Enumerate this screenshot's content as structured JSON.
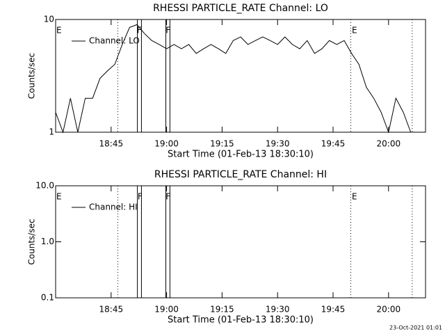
{
  "chart_data": [
    {
      "type": "line",
      "title": "RHESSI PARTICLE_RATE Channel: LO",
      "xlabel": "Start Time (01-Feb-13 18:30:10)",
      "ylabel": "Counts/sec",
      "xlim": [
        30,
        130
      ],
      "xticks": [
        {
          "value": 45,
          "label": "18:45"
        },
        {
          "value": 60,
          "label": "19:00"
        },
        {
          "value": 75,
          "label": "19:15"
        },
        {
          "value": 90,
          "label": "19:30"
        },
        {
          "value": 105,
          "label": "19:45"
        },
        {
          "value": 120,
          "label": "20:00"
        }
      ],
      "ylim": [
        1,
        10
      ],
      "yticks": [
        1,
        10
      ],
      "ylog": true,
      "legend": "upper left",
      "x": [
        30,
        32,
        34,
        36,
        38,
        40,
        42,
        44,
        46,
        48,
        50,
        52,
        54,
        56,
        58,
        60,
        62,
        64,
        66,
        68,
        70,
        72,
        74,
        76,
        78,
        80,
        82,
        84,
        86,
        88,
        90,
        92,
        94,
        96,
        98,
        100,
        102,
        104,
        106,
        108,
        110,
        112,
        114,
        116,
        118,
        120,
        122,
        124,
        126
      ],
      "series": [
        {
          "name": "Channel: LO",
          "color": "#000000",
          "values": [
            1.5,
            1,
            2,
            1,
            2,
            2,
            3,
            3.5,
            4,
            6,
            8.5,
            9,
            7.5,
            6.5,
            6,
            5.5,
            6,
            5.5,
            6,
            5,
            5.5,
            6,
            5.5,
            5,
            6.5,
            7,
            6,
            6.5,
            7,
            6.5,
            6,
            7,
            6,
            5.5,
            6.5,
            5,
            5.5,
            6.5,
            6,
            6.5,
            5,
            4,
            2.5,
            2,
            1.5,
            1,
            2,
            1.5,
            1
          ]
        }
      ],
      "markers": [
        {
          "x": 46.8,
          "style": "dotted"
        },
        {
          "x": 52.1,
          "style": "solid"
        },
        {
          "x": 53.2,
          "style": "solid"
        },
        {
          "x": 59.8,
          "style": "solid"
        },
        {
          "x": 60.9,
          "style": "solid"
        },
        {
          "x": 109.8,
          "style": "dotted"
        },
        {
          "x": 126.4,
          "style": "dotted"
        }
      ],
      "flags": [
        {
          "x": 30.9,
          "label": "E"
        },
        {
          "x": 52.6,
          "label": "F"
        },
        {
          "x": 60.4,
          "label": "F"
        },
        {
          "x": 110.8,
          "label": "E"
        }
      ]
    },
    {
      "type": "line",
      "title": "RHESSI PARTICLE_RATE Channel: HI",
      "xlabel": "Start Time (01-Feb-13 18:30:10)",
      "ylabel": "Counts/sec",
      "xlim": [
        30,
        130
      ],
      "xticks": [
        {
          "value": 45,
          "label": "18:45"
        },
        {
          "value": 60,
          "label": "19:00"
        },
        {
          "value": 75,
          "label": "19:15"
        },
        {
          "value": 90,
          "label": "19:30"
        },
        {
          "value": 105,
          "label": "19:45"
        },
        {
          "value": 120,
          "label": "20:00"
        }
      ],
      "ylim": [
        0.1,
        10
      ],
      "yticks": [
        0.1,
        {
          "value": 1,
          "label": "1.0"
        },
        {
          "value": 10,
          "label": "10.0"
        }
      ],
      "ylog": true,
      "legend": "upper left",
      "x": [],
      "series": [
        {
          "name": "Channel: HI",
          "color": "#000000",
          "values": []
        }
      ],
      "markers": [
        {
          "x": 46.8,
          "style": "dotted"
        },
        {
          "x": 52.1,
          "style": "solid"
        },
        {
          "x": 53.2,
          "style": "solid"
        },
        {
          "x": 59.8,
          "style": "solid"
        },
        {
          "x": 60.9,
          "style": "solid"
        },
        {
          "x": 109.8,
          "style": "dotted"
        },
        {
          "x": 126.4,
          "style": "dotted"
        }
      ],
      "flags": [
        {
          "x": 30.9,
          "label": "E"
        },
        {
          "x": 52.8,
          "label": "F"
        },
        {
          "x": 60.4,
          "label": "F"
        },
        {
          "x": 110.8,
          "label": "E"
        }
      ]
    }
  ],
  "footer": "23-Oct-2021 01:01"
}
